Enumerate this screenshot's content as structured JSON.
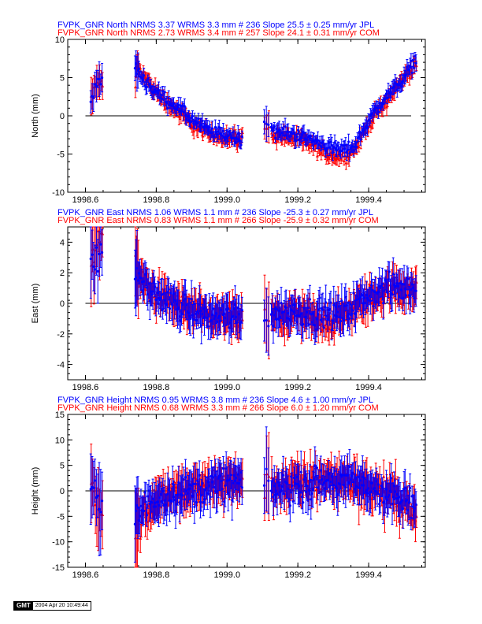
{
  "colors": {
    "jpl": "#0000ff",
    "com": "#ff0000",
    "axis": "#000000"
  },
  "stamp": {
    "logo": "GMT",
    "timestamp": "2004 Apr 20 10:49:44"
  },
  "chart_data": [
    {
      "type": "scatter",
      "component": "north",
      "title_lines": [
        "FVPK_GNR North NRMS 3.37 WRMS  3.3 mm # 236 Slope   25.5 ±  0.25 mm/yr JPL",
        "FVPK_GNR North NRMS 2.73 WRMS  3.4 mm # 257 Slope   24.1 ±  0.31 mm/yr COM"
      ],
      "ylabel": "North (mm)",
      "xlim": [
        1998.55,
        1999.56
      ],
      "ylim": [
        -10,
        10
      ],
      "x_ticks": [
        1998.6,
        1998.8,
        1999.0,
        1999.2,
        1999.4
      ],
      "x_tick_labels": [
        "1998.6",
        "1998.8",
        "1999.0",
        "1999.2",
        "1999.4"
      ],
      "y_ticks": [
        -10,
        -5,
        0,
        5,
        10
      ],
      "y_tick_labels": [
        "-10",
        "-5",
        "0",
        "5",
        "10"
      ],
      "zero_line": true,
      "series": [
        {
          "name": "JPL",
          "color": "#0000ff",
          "marker": "circle",
          "nrms": 3.37,
          "wrms_mm": 3.3,
          "n": 236,
          "slope_mm_per_yr": 25.5,
          "slope_sigma": 0.25,
          "trend": [
            [
              1998.62,
              1.5
            ],
            [
              1998.63,
              4.5
            ],
            [
              1998.645,
              4.5
            ],
            [
              1998.74,
              6.5
            ],
            [
              1998.76,
              5
            ],
            [
              1998.8,
              3
            ],
            [
              1998.85,
              1.5
            ],
            [
              1998.9,
              -0.5
            ],
            [
              1998.95,
              -2
            ],
            [
              1999.04,
              -3
            ],
            [
              1999.11,
              -0.5
            ],
            [
              1999.13,
              -2
            ],
            [
              1999.2,
              -2.5
            ],
            [
              1999.26,
              -3.5
            ],
            [
              1999.32,
              -4.5
            ],
            [
              1999.36,
              -4
            ],
            [
              1999.4,
              -0.5
            ],
            [
              1999.45,
              2.5
            ],
            [
              1999.5,
              5
            ],
            [
              1999.535,
              7.5
            ]
          ]
        },
        {
          "name": "COM",
          "color": "#ff0000",
          "marker": "triangle",
          "nrms": 2.73,
          "wrms_mm": 3.4,
          "n": 257,
          "slope_mm_per_yr": 24.1,
          "slope_sigma": 0.31,
          "trend": [
            [
              1998.62,
              2.5
            ],
            [
              1998.63,
              4
            ],
            [
              1998.645,
              4.5
            ],
            [
              1998.74,
              2
            ],
            [
              1998.745,
              7
            ],
            [
              1998.76,
              5.5
            ],
            [
              1998.8,
              3
            ],
            [
              1998.85,
              1
            ],
            [
              1998.9,
              -1
            ],
            [
              1998.95,
              -2.5
            ],
            [
              1999.04,
              -3
            ],
            [
              1999.11,
              -1.5
            ],
            [
              1999.13,
              -2.5
            ],
            [
              1999.2,
              -3
            ],
            [
              1999.26,
              -4.5
            ],
            [
              1999.32,
              -5.5
            ],
            [
              1999.36,
              -4.5
            ],
            [
              1999.4,
              -1
            ],
            [
              1999.45,
              2
            ],
            [
              1999.5,
              5
            ],
            [
              1999.535,
              7
            ]
          ]
        }
      ]
    },
    {
      "type": "scatter",
      "component": "east",
      "title_lines": [
        "FVPK_GNR East NRMS 1.06 WRMS  1.1 mm # 236 Slope  -25.3 ±  0.27 mm/yr JPL",
        "FVPK_GNR East NRMS 0.83 WRMS  1.1 mm # 266 Slope  -25.9 ±  0.32 mm/yr COM"
      ],
      "ylabel": "East (mm)",
      "xlim": [
        1998.55,
        1999.56
      ],
      "ylim": [
        -5,
        5
      ],
      "x_ticks": [
        1998.6,
        1998.8,
        1999.0,
        1999.2,
        1999.4
      ],
      "x_tick_labels": [
        "1998.6",
        "1998.8",
        "1999.0",
        "1999.2",
        "1999.4"
      ],
      "y_ticks": [
        -4,
        -2,
        0,
        2,
        4
      ],
      "y_tick_labels": [
        "-4",
        "-2",
        "0",
        "2",
        "4"
      ],
      "zero_line": true,
      "series": [
        {
          "name": "JPL",
          "color": "#0000ff",
          "marker": "circle",
          "nrms": 1.06,
          "wrms_mm": 1.1,
          "n": 236,
          "slope_mm_per_yr": -25.3,
          "slope_sigma": 0.27,
          "trend": [
            [
              1998.62,
              2.5
            ],
            [
              1998.64,
              3
            ],
            [
              1998.74,
              2
            ],
            [
              1998.76,
              1.5
            ],
            [
              1998.8,
              0.5
            ],
            [
              1998.85,
              0
            ],
            [
              1998.9,
              -0.5
            ],
            [
              1998.95,
              -0.8
            ],
            [
              1999.04,
              -0.8
            ],
            [
              1999.11,
              -0.8
            ],
            [
              1999.15,
              -0.6
            ],
            [
              1999.2,
              -0.5
            ],
            [
              1999.3,
              -0.8
            ],
            [
              1999.35,
              -0.3
            ],
            [
              1999.4,
              0.5
            ],
            [
              1999.45,
              1
            ],
            [
              1999.535,
              1
            ]
          ]
        },
        {
          "name": "COM",
          "color": "#ff0000",
          "marker": "triangle",
          "nrms": 0.83,
          "wrms_mm": 1.1,
          "n": 266,
          "slope_mm_per_yr": -25.9,
          "slope_sigma": 0.32,
          "trend": [
            [
              1998.62,
              3
            ],
            [
              1998.64,
              4.5
            ],
            [
              1998.74,
              2.5
            ],
            [
              1998.76,
              1.5
            ],
            [
              1998.8,
              0.5
            ],
            [
              1998.85,
              0
            ],
            [
              1998.9,
              -0.5
            ],
            [
              1998.95,
              -1
            ],
            [
              1999.04,
              -1
            ],
            [
              1999.11,
              -1
            ],
            [
              1999.15,
              -0.8
            ],
            [
              1999.2,
              -0.8
            ],
            [
              1999.3,
              -1.2
            ],
            [
              1999.35,
              -0.5
            ],
            [
              1999.4,
              0.3
            ],
            [
              1999.45,
              0.8
            ],
            [
              1999.535,
              1.2
            ]
          ]
        }
      ]
    },
    {
      "type": "scatter",
      "component": "height",
      "title_lines": [
        "FVPK_GNR Height NRMS 0.95 WRMS  3.8 mm # 236 Slope    4.6 ±  1.00 mm/yr JPL",
        "FVPK_GNR Height NRMS 0.68 WRMS  3.3 mm # 266 Slope    6.0 ±  1.20 mm/yr COM"
      ],
      "ylabel": "Height (mm)",
      "xlim": [
        1998.55,
        1999.56
      ],
      "ylim": [
        -15,
        15
      ],
      "x_ticks": [
        1998.6,
        1998.8,
        1999.0,
        1999.2,
        1999.4
      ],
      "x_tick_labels": [
        "1998.6",
        "1998.8",
        "1999.0",
        "1999.2",
        "1999.4"
      ],
      "y_ticks": [
        -15,
        -10,
        -5,
        0,
        5,
        10,
        15
      ],
      "y_tick_labels": [
        "-15",
        "-10",
        "-5",
        "0",
        "5",
        "10",
        "15"
      ],
      "zero_line": true,
      "series": [
        {
          "name": "JPL",
          "color": "#0000ff",
          "marker": "circle",
          "nrms": 0.95,
          "wrms_mm": 3.8,
          "n": 236,
          "slope_mm_per_yr": 4.6,
          "slope_sigma": 1.0,
          "trend": [
            [
              1998.62,
              0
            ],
            [
              1998.64,
              -3
            ],
            [
              1998.74,
              -5
            ],
            [
              1998.8,
              -1
            ],
            [
              1998.9,
              0
            ],
            [
              1999.0,
              1.5
            ],
            [
              1999.04,
              2
            ],
            [
              1999.11,
              0
            ],
            [
              1999.2,
              1
            ],
            [
              1999.3,
              2
            ],
            [
              1999.4,
              1
            ],
            [
              1999.5,
              -2
            ],
            [
              1999.535,
              -4
            ]
          ]
        },
        {
          "name": "COM",
          "color": "#ff0000",
          "marker": "triangle",
          "nrms": 0.68,
          "wrms_mm": 3.3,
          "n": 266,
          "slope_mm_per_yr": 6.0,
          "slope_sigma": 1.2,
          "trend": [
            [
              1998.62,
              1
            ],
            [
              1998.64,
              -4
            ],
            [
              1998.74,
              -8
            ],
            [
              1998.8,
              -1
            ],
            [
              1998.9,
              0
            ],
            [
              1999.0,
              2
            ],
            [
              1999.04,
              2
            ],
            [
              1999.11,
              1
            ],
            [
              1999.2,
              1.5
            ],
            [
              1999.3,
              2.5
            ],
            [
              1999.4,
              1
            ],
            [
              1999.5,
              -2
            ],
            [
              1999.535,
              -5
            ]
          ]
        }
      ]
    }
  ]
}
